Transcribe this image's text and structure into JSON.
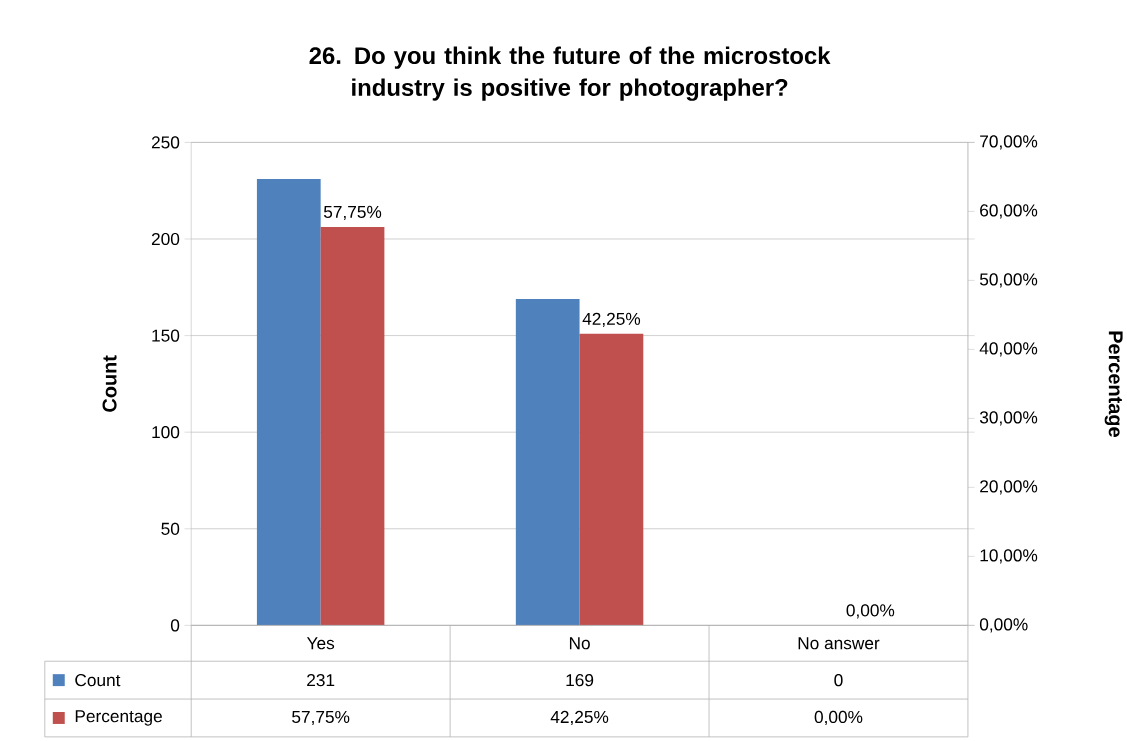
{
  "chart_data": {
    "type": "bar",
    "title": "26. Do you think the future of the microstock industry is positive for photographer?",
    "categories": [
      "Yes",
      "No",
      "No answer"
    ],
    "ylabel": "Count",
    "y2label": "Percentage",
    "ylim": [
      0,
      250
    ],
    "yticks": [
      0,
      50,
      100,
      150,
      200,
      250
    ],
    "y2lim": [
      0,
      70
    ],
    "y2ticks": [
      {
        "value": 0,
        "label": "0,00%"
      },
      {
        "value": 10,
        "label": "10,00%"
      },
      {
        "value": 20,
        "label": "20,00%"
      },
      {
        "value": 30,
        "label": "30,00%"
      },
      {
        "value": 40,
        "label": "40,00%"
      },
      {
        "value": 50,
        "label": "50,00%"
      },
      {
        "value": 60,
        "label": "60,00%"
      },
      {
        "value": 70,
        "label": "70,00%"
      }
    ],
    "series": [
      {
        "name": "Count",
        "color": "#4f81bd",
        "values": [
          231,
          169,
          0
        ],
        "value_labels": [
          "231",
          "169",
          "0"
        ]
      },
      {
        "name": "Percentage",
        "color": "#c0504d",
        "axis": "y2",
        "values": [
          57.75,
          42.25,
          0
        ],
        "value_labels": [
          "57,75%",
          "42,25%",
          "0,00%"
        ]
      }
    ],
    "grid": "y",
    "legend": "bottom"
  }
}
